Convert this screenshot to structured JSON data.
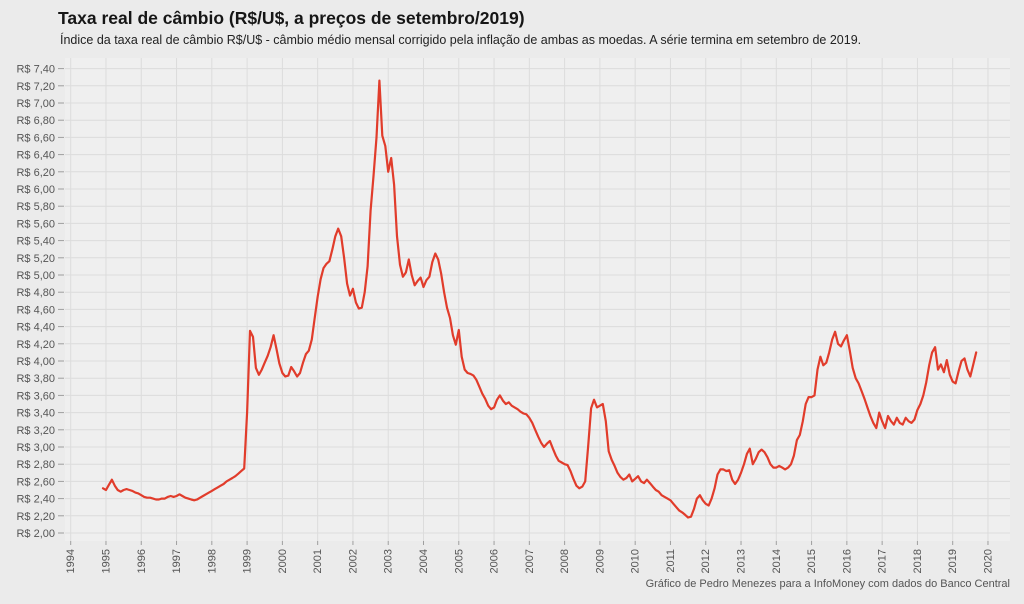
{
  "page": {
    "title": "Taxa real de câmbio (R$/U$, a preços de setembro/2019)",
    "subtitle": "Índice da taxa real de câmbio R$/U$ - câmbio médio mensal corrigido pela inflação de ambas as moedas. A série termina em setembro de 2019.",
    "footer": "Gráfico de Pedro Menezes para a InfoMoney com dados do Banco Central"
  },
  "colors": {
    "page_background": "#ebebeb",
    "panel_background": "#efefef",
    "gridline": "#dcdcdc",
    "tick_mark": "#9e9e9e",
    "axis_text": "#555555",
    "line": "#e13c2b"
  },
  "chart_data": {
    "type": "line",
    "title": "Taxa real de câmbio (R$/U$, a preços de setembro/2019)",
    "subtitle": "Índice da taxa real de câmbio R$/U$ - câmbio médio mensal corrigido pela inflação de ambas as moedas. A série termina em setembro de 2019.",
    "series_name": "Taxa real de câmbio R$/U$ (preços de setembro/2019)",
    "frequency": "monthly",
    "x_start": "1994-12",
    "x_end": "2019-09",
    "ylim": [
      2.0,
      7.4
    ],
    "y_step": 0.2,
    "grid": true,
    "legend": "none",
    "y_axis_labels": [
      "R$ 2,00",
      "R$ 2,20",
      "R$ 2,40",
      "R$ 2,60",
      "R$ 2,80",
      "R$ 3,00",
      "R$ 3,20",
      "R$ 3,40",
      "R$ 3,60",
      "R$ 3,80",
      "R$ 4,00",
      "R$ 4,20",
      "R$ 4,40",
      "R$ 4,60",
      "R$ 4,80",
      "R$ 5,00",
      "R$ 5,20",
      "R$ 5,40",
      "R$ 5,60",
      "R$ 5,80",
      "R$ 6,00",
      "R$ 6,20",
      "R$ 6,40",
      "R$ 6,60",
      "R$ 6,80",
      "R$ 7,00",
      "R$ 7,20",
      "R$ 7,40"
    ],
    "x_axis_labels": [
      "1994",
      "1995",
      "1996",
      "1997",
      "1998",
      "1999",
      "2000",
      "2001",
      "2002",
      "2003",
      "2004",
      "2005",
      "2006",
      "2007",
      "2008",
      "2009",
      "2010",
      "2011",
      "2012",
      "2013",
      "2014",
      "2015",
      "2016",
      "2017",
      "2018",
      "2019",
      "2020"
    ],
    "values": [
      2.52,
      2.5,
      2.56,
      2.62,
      2.55,
      2.5,
      2.48,
      2.5,
      2.51,
      2.5,
      2.49,
      2.47,
      2.46,
      2.44,
      2.42,
      2.41,
      2.41,
      2.4,
      2.39,
      2.39,
      2.4,
      2.4,
      2.42,
      2.43,
      2.42,
      2.43,
      2.45,
      2.43,
      2.41,
      2.4,
      2.39,
      2.38,
      2.39,
      2.41,
      2.43,
      2.45,
      2.47,
      2.49,
      2.51,
      2.53,
      2.55,
      2.57,
      2.6,
      2.62,
      2.64,
      2.66,
      2.69,
      2.72,
      2.75,
      3.4,
      4.35,
      4.28,
      3.92,
      3.84,
      3.9,
      3.98,
      4.06,
      4.16,
      4.3,
      4.14,
      3.97,
      3.86,
      3.82,
      3.83,
      3.93,
      3.88,
      3.82,
      3.86,
      3.98,
      4.08,
      4.12,
      4.25,
      4.5,
      4.75,
      4.95,
      5.08,
      5.13,
      5.16,
      5.3,
      5.45,
      5.54,
      5.45,
      5.2,
      4.9,
      4.76,
      4.84,
      4.68,
      4.61,
      4.62,
      4.8,
      5.1,
      5.75,
      6.15,
      6.6,
      7.26,
      6.62,
      6.5,
      6.2,
      6.36,
      6.05,
      5.45,
      5.12,
      4.98,
      5.03,
      5.18,
      5.0,
      4.88,
      4.93,
      4.97,
      4.86,
      4.94,
      4.98,
      5.15,
      5.25,
      5.18,
      5.02,
      4.8,
      4.62,
      4.5,
      4.3,
      4.19,
      4.36,
      4.05,
      3.9,
      3.86,
      3.85,
      3.83,
      3.78,
      3.7,
      3.62,
      3.56,
      3.48,
      3.44,
      3.46,
      3.55,
      3.6,
      3.54,
      3.5,
      3.52,
      3.48,
      3.46,
      3.44,
      3.41,
      3.39,
      3.38,
      3.34,
      3.28,
      3.2,
      3.12,
      3.05,
      3.0,
      3.04,
      3.07,
      2.98,
      2.9,
      2.84,
      2.82,
      2.8,
      2.79,
      2.72,
      2.63,
      2.55,
      2.52,
      2.54,
      2.6,
      3.0,
      3.45,
      3.55,
      3.46,
      3.48,
      3.5,
      3.3,
      2.95,
      2.85,
      2.78,
      2.7,
      2.65,
      2.62,
      2.64,
      2.68,
      2.6,
      2.63,
      2.66,
      2.6,
      2.58,
      2.62,
      2.58,
      2.54,
      2.5,
      2.48,
      2.44,
      2.42,
      2.4,
      2.38,
      2.34,
      2.3,
      2.26,
      2.24,
      2.21,
      2.18,
      2.19,
      2.28,
      2.4,
      2.44,
      2.38,
      2.34,
      2.32,
      2.4,
      2.52,
      2.68,
      2.74,
      2.74,
      2.72,
      2.73,
      2.62,
      2.57,
      2.62,
      2.7,
      2.8,
      2.92,
      2.98,
      2.8,
      2.86,
      2.94,
      2.97,
      2.94,
      2.88,
      2.8,
      2.76,
      2.76,
      2.78,
      2.76,
      2.74,
      2.76,
      2.8,
      2.9,
      3.08,
      3.14,
      3.3,
      3.5,
      3.58,
      3.58,
      3.6,
      3.9,
      4.05,
      3.95,
      3.98,
      4.1,
      4.25,
      4.34,
      4.2,
      4.17,
      4.24,
      4.3,
      4.12,
      3.92,
      3.8,
      3.74,
      3.65,
      3.56,
      3.46,
      3.36,
      3.28,
      3.22,
      3.4,
      3.3,
      3.22,
      3.36,
      3.3,
      3.26,
      3.34,
      3.28,
      3.26,
      3.34,
      3.3,
      3.28,
      3.32,
      3.43,
      3.5,
      3.6,
      3.75,
      3.95,
      4.1,
      4.16,
      3.9,
      3.96,
      3.87,
      4.01,
      3.84,
      3.76,
      3.74,
      3.88,
      4.0,
      4.03,
      3.9,
      3.82,
      3.96,
      4.1
    ]
  }
}
